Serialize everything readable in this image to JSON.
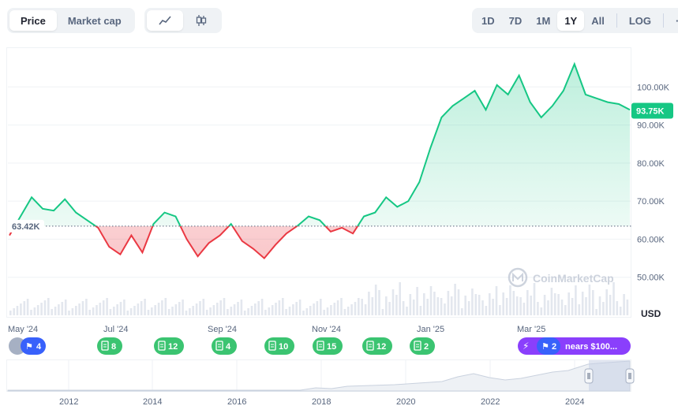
{
  "tabs": {
    "price": "Price",
    "market_cap": "Market cap"
  },
  "chart_style": {
    "line_icon": "line-chart-icon",
    "candle_icon": "candlestick-icon"
  },
  "ranges": [
    "1D",
    "7D",
    "1M",
    "1Y",
    "All",
    "LOG"
  ],
  "active_range": "1Y",
  "more_label": "···",
  "reference_label": "63.42K",
  "current_price_label": "93.75K",
  "currency_label": "USD",
  "watermark": "CoinMarketCap",
  "colors": {
    "up": "#16c784",
    "down": "#ea3943",
    "event": "#3bc471",
    "highlight": "#8a3ffc",
    "flag": "#3861fb"
  },
  "events": [
    {
      "date": "May '24",
      "count": "4",
      "icon": "flag-icon"
    },
    {
      "date": "Jul '24",
      "count": "8",
      "icon": "document-icon"
    },
    {
      "date": "",
      "count": "12",
      "icon": "document-icon"
    },
    {
      "date": "Sep '24",
      "count": "4",
      "icon": "document-icon"
    },
    {
      "date": "",
      "count": "10",
      "icon": "document-icon"
    },
    {
      "date": "Nov '24",
      "count": "15",
      "icon": "document-icon"
    },
    {
      "date": "",
      "count": "12",
      "icon": "document-icon"
    },
    {
      "date": "Jan '25",
      "count": "2",
      "icon": "document-icon"
    },
    {
      "date": "Mar '25",
      "count": "2",
      "icon": "flag-icon",
      "note": "nears $100..."
    }
  ],
  "chart_data": {
    "type": "area",
    "ylim": [
      40000,
      110000
    ],
    "y_ticks": [
      "100.00K",
      "90.00K",
      "80.00K",
      "70.00K",
      "60.00K",
      "50.00K"
    ],
    "y_tick_values": [
      100000,
      90000,
      80000,
      70000,
      60000,
      50000
    ],
    "baseline": 63420,
    "current": 93750,
    "x_labels": [
      "May '24",
      "Jul '24",
      "Sep '24",
      "Nov '24",
      "Jan '25",
      "Mar '25"
    ],
    "series": [
      {
        "x": [
          "2024-04-01",
          "2024-04-08",
          "2024-04-15",
          "2024-04-22",
          "2024-04-29",
          "2024-05-06",
          "2024-05-13",
          "2024-05-20",
          "2024-05-27",
          "2024-06-03",
          "2024-06-10",
          "2024-06-17",
          "2024-06-24",
          "2024-07-01",
          "2024-07-08",
          "2024-07-15",
          "2024-07-22",
          "2024-07-29",
          "2024-08-05",
          "2024-08-12",
          "2024-08-19",
          "2024-08-26",
          "2024-09-02",
          "2024-09-09",
          "2024-09-16",
          "2024-09-23",
          "2024-09-30",
          "2024-10-07",
          "2024-10-14",
          "2024-10-21",
          "2024-10-28",
          "2024-11-04",
          "2024-11-11",
          "2024-11-18",
          "2024-11-25",
          "2024-12-02",
          "2024-12-09",
          "2024-12-16",
          "2024-12-23",
          "2024-12-30",
          "2025-01-06",
          "2025-01-13",
          "2025-01-20",
          "2025-01-27",
          "2025-02-03",
          "2025-02-10",
          "2025-02-17",
          "2025-02-24",
          "2025-03-03",
          "2025-03-10",
          "2025-03-17",
          "2025-03-24",
          "2025-03-31",
          "2025-04-07",
          "2025-04-14",
          "2025-04-21",
          "2025-04-28"
        ],
        "values": [
          61000,
          66000,
          71000,
          68000,
          67500,
          70500,
          67000,
          65000,
          63000,
          58000,
          56000,
          61000,
          56500,
          64000,
          67000,
          66000,
          60000,
          55500,
          59000,
          61000,
          64000,
          59500,
          57500,
          55000,
          58500,
          61500,
          63500,
          66000,
          65000,
          62000,
          63000,
          61500,
          66000,
          67000,
          71000,
          68500,
          70000,
          75000,
          84000,
          92000,
          95000,
          97000,
          99000,
          94000,
          100500,
          98000,
          103000,
          96000,
          92000,
          95000,
          99000,
          106000,
          98000,
          97000,
          96000,
          95500,
          94000
        ]
      }
    ]
  }
}
